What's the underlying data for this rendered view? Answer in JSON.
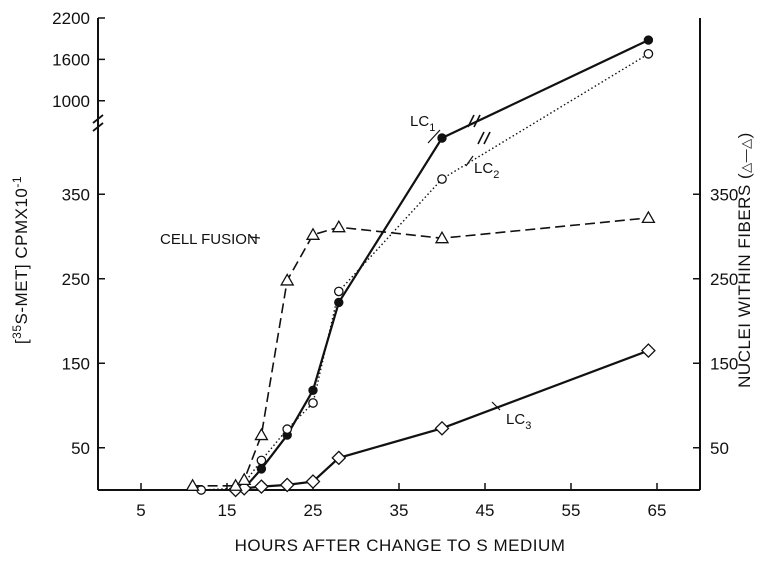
{
  "chart_data": {
    "type": "line",
    "xlabel": "HOURS AFTER CHANGE TO S MEDIUM",
    "ylabel": "[35S-MET] CPMX10-1",
    "ylabel_parts": {
      "open": "[",
      "sup": "35",
      "main": "S-MET] CPMX10",
      "exp": "-1"
    },
    "y2label": "NUCLEI WITHIN FIBERS (△—△)",
    "y2label_parts": {
      "main": "NUCLEI WITHIN FIBERS (",
      "key": "△—△",
      "close": ")"
    },
    "xlim": [
      0,
      70
    ],
    "x_ticks": [
      5,
      15,
      25,
      35,
      45,
      55,
      65
    ],
    "y_ticks_lower": [
      50,
      150,
      250,
      350
    ],
    "y_ticks_upper": [
      1000,
      1600,
      2200
    ],
    "y2_ticks": [
      50,
      150,
      250,
      350
    ],
    "y_break": true,
    "series": [
      {
        "name": "LC1",
        "marker": "filled-circle",
        "line": "solid",
        "x": [
          16,
          17,
          19,
          22,
          25,
          28,
          40,
          64
        ],
        "y": [
          0,
          2,
          25,
          65,
          118,
          222,
          460,
          1880
        ]
      },
      {
        "name": "LC2",
        "marker": "open-circle",
        "line": "dotted",
        "x": [
          12,
          16,
          17,
          19,
          22,
          25,
          28,
          40,
          64
        ],
        "y": [
          0,
          2,
          8,
          35,
          72,
          103,
          235,
          368,
          1680
        ]
      },
      {
        "name": "LC3",
        "marker": "open-diamond",
        "line": "solid",
        "x": [
          16,
          17,
          19,
          22,
          25,
          28,
          40,
          64
        ],
        "y": [
          0,
          2,
          4,
          6,
          10,
          38,
          73,
          165
        ]
      },
      {
        "name": "CELL FUSION",
        "marker": "open-triangle",
        "line": "dashed",
        "x": [
          11,
          16,
          17,
          19,
          22,
          25,
          28,
          40,
          64
        ],
        "y": [
          5,
          5,
          12,
          65,
          248,
          302,
          311,
          298,
          322
        ]
      }
    ]
  }
}
